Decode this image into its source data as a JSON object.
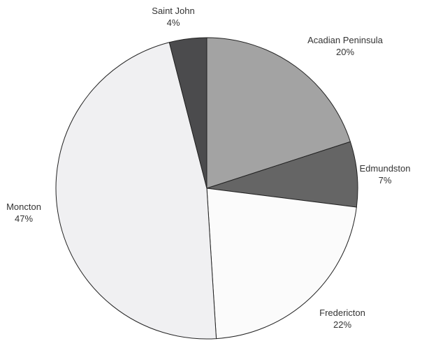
{
  "chart_data": {
    "type": "pie",
    "title": "",
    "start_angle_deg": 0,
    "direction": "clockwise",
    "slices": [
      {
        "label": "Acadian Peninsula",
        "value": 20,
        "value_label": "20%",
        "color": "#a3a3a3"
      },
      {
        "label": "Edmundston",
        "value": 7,
        "value_label": "7%",
        "color": "#656565"
      },
      {
        "label": "Fredericton",
        "value": 22,
        "value_label": "22%",
        "color": "#fbfbfb"
      },
      {
        "label": "Moncton",
        "value": 47,
        "value_label": "47%",
        "color": "#f0f0f2"
      },
      {
        "label": "Saint John",
        "value": 4,
        "value_label": "4%",
        "color": "#4b4b4d"
      }
    ]
  }
}
